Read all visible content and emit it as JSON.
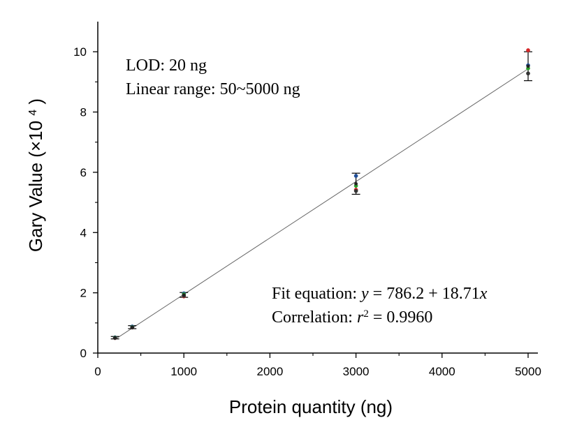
{
  "chart_data": {
    "type": "scatter",
    "xlabel": "Protein quantity (ng)",
    "ylabel": {
      "main": "Gary Value",
      "unit_prefix": "(×10",
      "unit_exp": "4",
      "unit_suffix": ")"
    },
    "xlim": [
      0,
      5000
    ],
    "ylim": [
      0,
      11
    ],
    "xticks": [
      0,
      1000,
      2000,
      3000,
      4000,
      5000
    ],
    "yticks": [
      0,
      2,
      4,
      6,
      8,
      10
    ],
    "xtick_labels": [
      "0",
      "1000",
      "2000",
      "3000",
      "4000",
      "5000"
    ],
    "ytick_labels": [
      "0",
      "2",
      "4",
      "6",
      "8",
      "10"
    ],
    "grid": false,
    "points": [
      {
        "x": 200,
        "y": 0.51,
        "err": 0.04
      },
      {
        "x": 400,
        "y": 0.86,
        "err": 0.05
      },
      {
        "x": 1000,
        "y": 1.93,
        "err": 0.08
      },
      {
        "x": 3000,
        "y": 5.62,
        "err": 0.35
      },
      {
        "x": 5000,
        "y": 9.52,
        "err": 0.48
      }
    ],
    "replicates": [
      {
        "x": 200,
        "y": 0.5,
        "color": "#d62728"
      },
      {
        "x": 200,
        "y": 0.52,
        "color": "#1f4e99"
      },
      {
        "x": 200,
        "y": 0.51,
        "color": "#2ca02c"
      },
      {
        "x": 200,
        "y": 0.5,
        "color": "#333333"
      },
      {
        "x": 400,
        "y": 0.85,
        "color": "#d62728"
      },
      {
        "x": 400,
        "y": 0.88,
        "color": "#1f4e99"
      },
      {
        "x": 400,
        "y": 0.86,
        "color": "#2ca02c"
      },
      {
        "x": 400,
        "y": 0.85,
        "color": "#333333"
      },
      {
        "x": 1000,
        "y": 1.88,
        "color": "#d62728"
      },
      {
        "x": 1000,
        "y": 1.98,
        "color": "#1f4e99"
      },
      {
        "x": 1000,
        "y": 1.95,
        "color": "#2ca02c"
      },
      {
        "x": 1000,
        "y": 1.9,
        "color": "#333333"
      },
      {
        "x": 3000,
        "y": 5.42,
        "color": "#d62728"
      },
      {
        "x": 3000,
        "y": 5.88,
        "color": "#1f4e99"
      },
      {
        "x": 3000,
        "y": 5.55,
        "color": "#2ca02c"
      },
      {
        "x": 3000,
        "y": 5.38,
        "color": "#333333"
      },
      {
        "x": 5000,
        "y": 10.05,
        "color": "#d62728"
      },
      {
        "x": 5000,
        "y": 9.55,
        "color": "#1f4e99"
      },
      {
        "x": 5000,
        "y": 9.45,
        "color": "#2ca02c"
      },
      {
        "x": 5000,
        "y": 9.28,
        "color": "#333333"
      }
    ],
    "fit": {
      "intercept": 786.2,
      "slope": 18.71,
      "y_scale": 10000,
      "x_range": [
        200,
        5000
      ]
    },
    "annotations": {
      "lod": "LOD: 20 ng",
      "linear_range": "Linear range: 50~5000 ng",
      "fit_prefix": "Fit equation: ",
      "fit_y": "y",
      "fit_middle": " = 786.2 + 18.71",
      "fit_x": "x",
      "corr_prefix": "Correlation: ",
      "corr_r": "r",
      "corr_exp": "2",
      "corr_value": " = 0.9960"
    }
  }
}
